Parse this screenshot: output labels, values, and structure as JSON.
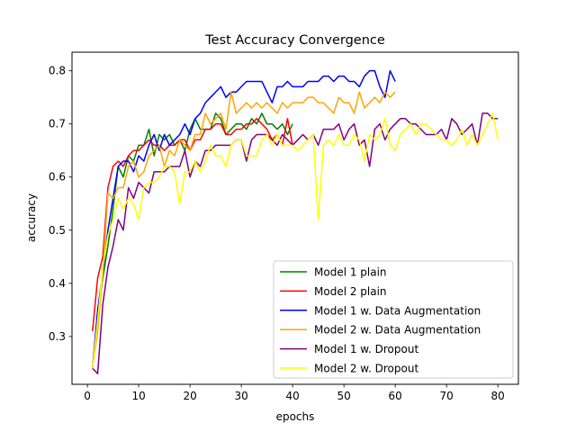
{
  "chart_data": {
    "type": "line",
    "title": "Test Accuracy Convergence",
    "xlabel": "epochs",
    "ylabel": "accuracy",
    "xlim": [
      -3,
      84
    ],
    "ylim": [
      0.21,
      0.835
    ],
    "xticks": [
      0,
      10,
      20,
      30,
      40,
      50,
      60,
      70,
      80
    ],
    "yticks": [
      0.3,
      0.4,
      0.5,
      0.6,
      0.7,
      0.8
    ],
    "grid": false,
    "legend_position": "lower-right",
    "series": [
      {
        "name": "Model 1 plain",
        "color": "#008000",
        "x": [
          1,
          2,
          3,
          4,
          5,
          6,
          7,
          8,
          9,
          10,
          11,
          12,
          13,
          14,
          15,
          16,
          17,
          18,
          19,
          20,
          21,
          22,
          23,
          24,
          25,
          26,
          27,
          28,
          29,
          30,
          31,
          32,
          33,
          34,
          35,
          36,
          37,
          38,
          39,
          40
        ],
        "y": [
          0.24,
          0.34,
          0.41,
          0.47,
          0.54,
          0.62,
          0.6,
          0.64,
          0.63,
          0.66,
          0.66,
          0.69,
          0.64,
          0.68,
          0.67,
          0.68,
          0.66,
          0.67,
          0.65,
          0.69,
          0.71,
          0.69,
          0.69,
          0.69,
          0.72,
          0.71,
          0.68,
          0.69,
          0.7,
          0.7,
          0.69,
          0.71,
          0.7,
          0.72,
          0.7,
          0.7,
          0.69,
          0.7,
          0.68,
          0.7
        ]
      },
      {
        "name": "Model 2 plain",
        "color": "#ff0000",
        "x": [
          1,
          2,
          3,
          4,
          5,
          6,
          7,
          8,
          9,
          10,
          11,
          12,
          13,
          14,
          15,
          16,
          17,
          18,
          19,
          20,
          21,
          22,
          23,
          24,
          25,
          26,
          27,
          28,
          29,
          30,
          31,
          32,
          33,
          34,
          35,
          36,
          37,
          38,
          39,
          40
        ],
        "y": [
          0.31,
          0.41,
          0.45,
          0.58,
          0.62,
          0.63,
          0.62,
          0.64,
          0.65,
          0.65,
          0.66,
          0.67,
          0.66,
          0.66,
          0.65,
          0.66,
          0.66,
          0.67,
          0.67,
          0.65,
          0.67,
          0.67,
          0.69,
          0.69,
          0.7,
          0.7,
          0.68,
          0.68,
          0.69,
          0.69,
          0.7,
          0.7,
          0.71,
          0.7,
          0.69,
          0.67,
          0.68,
          0.66,
          0.71,
          0.66
        ]
      },
      {
        "name": "Model 1 w. Data Augmentation",
        "color": "#0000ff",
        "x": [
          1,
          2,
          3,
          4,
          5,
          6,
          7,
          8,
          9,
          10,
          11,
          12,
          13,
          14,
          15,
          16,
          17,
          18,
          19,
          20,
          21,
          22,
          23,
          24,
          25,
          26,
          27,
          28,
          29,
          30,
          31,
          32,
          33,
          34,
          35,
          36,
          37,
          38,
          39,
          40,
          41,
          42,
          43,
          44,
          45,
          46,
          47,
          48,
          49,
          50,
          51,
          52,
          53,
          54,
          55,
          56,
          57,
          58,
          59,
          60
        ],
        "y": [
          0.24,
          0.35,
          0.42,
          0.5,
          0.56,
          0.62,
          0.63,
          0.63,
          0.61,
          0.64,
          0.63,
          0.66,
          0.68,
          0.65,
          0.68,
          0.66,
          0.67,
          0.68,
          0.7,
          0.68,
          0.71,
          0.72,
          0.74,
          0.75,
          0.76,
          0.77,
          0.75,
          0.76,
          0.76,
          0.77,
          0.78,
          0.78,
          0.78,
          0.78,
          0.76,
          0.74,
          0.77,
          0.77,
          0.78,
          0.77,
          0.77,
          0.77,
          0.78,
          0.78,
          0.78,
          0.79,
          0.79,
          0.78,
          0.79,
          0.79,
          0.78,
          0.78,
          0.77,
          0.79,
          0.8,
          0.8,
          0.77,
          0.75,
          0.8,
          0.78
        ]
      },
      {
        "name": "Model 2 w. Data Augmentation",
        "color": "#ffa500",
        "x": [
          1,
          2,
          3,
          4,
          5,
          6,
          7,
          8,
          9,
          10,
          11,
          12,
          13,
          14,
          15,
          16,
          17,
          18,
          19,
          20,
          21,
          22,
          23,
          24,
          25,
          26,
          27,
          28,
          29,
          30,
          31,
          32,
          33,
          34,
          35,
          36,
          37,
          38,
          39,
          40,
          41,
          42,
          43,
          44,
          45,
          46,
          47,
          48,
          49,
          50,
          51,
          52,
          53,
          54,
          55,
          56,
          57,
          58,
          59,
          60
        ],
        "y": [
          0.24,
          0.31,
          0.42,
          0.57,
          0.56,
          0.58,
          0.58,
          0.62,
          0.63,
          0.6,
          0.61,
          0.64,
          0.65,
          0.66,
          0.62,
          0.65,
          0.64,
          0.67,
          0.66,
          0.65,
          0.68,
          0.68,
          0.72,
          0.7,
          0.71,
          0.72,
          0.69,
          0.76,
          0.72,
          0.73,
          0.74,
          0.73,
          0.74,
          0.73,
          0.74,
          0.73,
          0.72,
          0.74,
          0.73,
          0.74,
          0.74,
          0.74,
          0.75,
          0.75,
          0.74,
          0.74,
          0.73,
          0.72,
          0.75,
          0.74,
          0.74,
          0.72,
          0.76,
          0.73,
          0.74,
          0.75,
          0.74,
          0.76,
          0.75,
          0.76
        ]
      },
      {
        "name": "Model 1 w. Dropout",
        "color": "#800080",
        "x": [
          1,
          2,
          3,
          4,
          5,
          6,
          7,
          8,
          9,
          10,
          11,
          12,
          13,
          14,
          15,
          16,
          17,
          18,
          19,
          20,
          21,
          22,
          23,
          24,
          25,
          26,
          27,
          28,
          29,
          30,
          31,
          32,
          33,
          34,
          35,
          36,
          37,
          38,
          39,
          40,
          41,
          42,
          43,
          44,
          45,
          46,
          47,
          48,
          49,
          50,
          51,
          52,
          53,
          54,
          55,
          56,
          57,
          58,
          59,
          60,
          61,
          62,
          63,
          64,
          65,
          66,
          67,
          68,
          69,
          70,
          71,
          72,
          73,
          74,
          75,
          76,
          77,
          78,
          79,
          80
        ],
        "y": [
          0.24,
          0.23,
          0.36,
          0.43,
          0.47,
          0.52,
          0.5,
          0.58,
          0.56,
          0.59,
          0.58,
          0.57,
          0.61,
          0.61,
          0.61,
          0.62,
          0.62,
          0.62,
          0.65,
          0.6,
          0.63,
          0.62,
          0.65,
          0.65,
          0.66,
          0.66,
          0.66,
          0.66,
          0.67,
          0.67,
          0.63,
          0.67,
          0.68,
          0.68,
          0.68,
          0.67,
          0.66,
          0.68,
          0.67,
          0.66,
          0.67,
          0.68,
          0.67,
          0.68,
          0.66,
          0.69,
          0.69,
          0.69,
          0.7,
          0.67,
          0.69,
          0.7,
          0.66,
          0.67,
          0.62,
          0.69,
          0.7,
          0.67,
          0.69,
          0.7,
          0.71,
          0.71,
          0.7,
          0.7,
          0.69,
          0.68,
          0.68,
          0.68,
          0.69,
          0.67,
          0.71,
          0.7,
          0.68,
          0.69,
          0.7,
          0.66,
          0.72,
          0.72,
          0.71,
          0.71
        ]
      },
      {
        "name": "Model 2 w. Dropout",
        "color": "#ffff00",
        "x": [
          1,
          2,
          3,
          4,
          5,
          6,
          7,
          8,
          9,
          10,
          11,
          12,
          13,
          14,
          15,
          16,
          17,
          18,
          19,
          20,
          21,
          22,
          23,
          24,
          25,
          26,
          27,
          28,
          29,
          30,
          31,
          32,
          33,
          34,
          35,
          36,
          37,
          38,
          39,
          40,
          41,
          42,
          43,
          44,
          45,
          46,
          47,
          48,
          49,
          50,
          51,
          52,
          53,
          54,
          55,
          56,
          57,
          58,
          59,
          60,
          61,
          62,
          63,
          64,
          65,
          66,
          67,
          68,
          69,
          70,
          71,
          72,
          73,
          74,
          75,
          76,
          77,
          78,
          79,
          80
        ],
        "y": [
          0.24,
          0.33,
          0.43,
          0.49,
          0.52,
          0.56,
          0.54,
          0.56,
          0.55,
          0.52,
          0.58,
          0.59,
          0.59,
          0.6,
          0.62,
          0.62,
          0.61,
          0.55,
          0.61,
          0.61,
          0.63,
          0.61,
          0.63,
          0.66,
          0.64,
          0.64,
          0.62,
          0.66,
          0.67,
          0.67,
          0.64,
          0.64,
          0.64,
          0.67,
          0.68,
          0.66,
          0.68,
          0.66,
          0.66,
          0.66,
          0.65,
          0.66,
          0.67,
          0.68,
          0.52,
          0.66,
          0.67,
          0.66,
          0.68,
          0.66,
          0.66,
          0.68,
          0.67,
          0.63,
          0.68,
          0.67,
          0.68,
          0.71,
          0.66,
          0.65,
          0.68,
          0.69,
          0.7,
          0.68,
          0.7,
          0.7,
          0.69,
          0.68,
          0.67,
          0.67,
          0.66,
          0.67,
          0.69,
          0.66,
          0.68,
          0.66,
          0.68,
          0.7,
          0.72,
          0.67
        ]
      }
    ]
  }
}
